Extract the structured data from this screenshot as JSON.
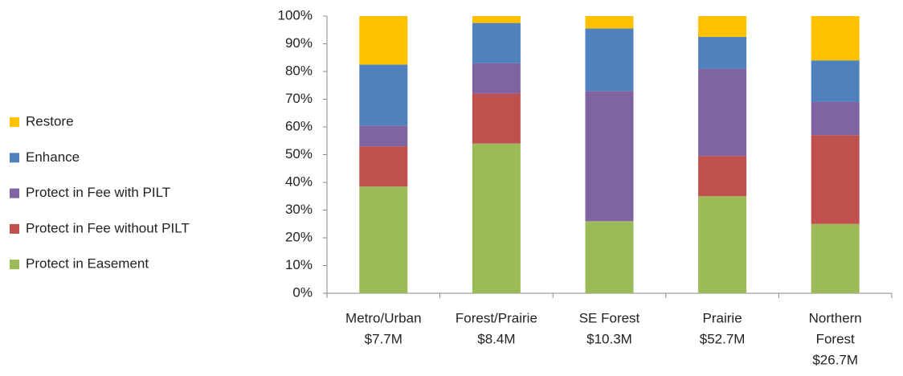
{
  "chart_data": {
    "type": "stacked_bar_percent",
    "categories": [
      [
        "Metro/Urban",
        "$7.7M"
      ],
      [
        "Forest/Prairie",
        "$8.4M"
      ],
      [
        "SE Forest",
        "$10.3M"
      ],
      [
        "Prairie",
        "$52.7M"
      ],
      [
        "Northern",
        "Forest",
        "$26.7M"
      ]
    ],
    "series": [
      {
        "name": "Protect in Easement",
        "color": "#9bbb59",
        "values": [
          38.5,
          54,
          26,
          35,
          25
        ]
      },
      {
        "name": "Protect in Fee without PILT",
        "color": "#c0504d",
        "values": [
          14.5,
          18,
          0,
          14.5,
          32
        ]
      },
      {
        "name": "Protect in Fee with PILT",
        "color": "#8064a2",
        "values": [
          7.5,
          11,
          47,
          31.5,
          12
        ]
      },
      {
        "name": "Enhance",
        "color": "#4f81bd",
        "values": [
          22,
          14.5,
          22.5,
          11.5,
          15
        ]
      },
      {
        "name": "Restore",
        "color": "#ffc000",
        "values": [
          17.5,
          2.5,
          4.5,
          7.5,
          16
        ]
      }
    ],
    "ylim": [
      0,
      100
    ],
    "yticks": [
      {
        "value": 0,
        "label": "0%"
      },
      {
        "value": 10,
        "label": "10%"
      },
      {
        "value": 20,
        "label": "20%"
      },
      {
        "value": 30,
        "label": "30%"
      },
      {
        "value": 40,
        "label": "40%"
      },
      {
        "value": 50,
        "label": "50%"
      },
      {
        "value": 60,
        "label": "60%"
      },
      {
        "value": 70,
        "label": "70%"
      },
      {
        "value": 80,
        "label": "80%"
      },
      {
        "value": 90,
        "label": "90%"
      },
      {
        "value": 100,
        "label": "100%"
      }
    ],
    "grid": false,
    "legend": "left"
  }
}
